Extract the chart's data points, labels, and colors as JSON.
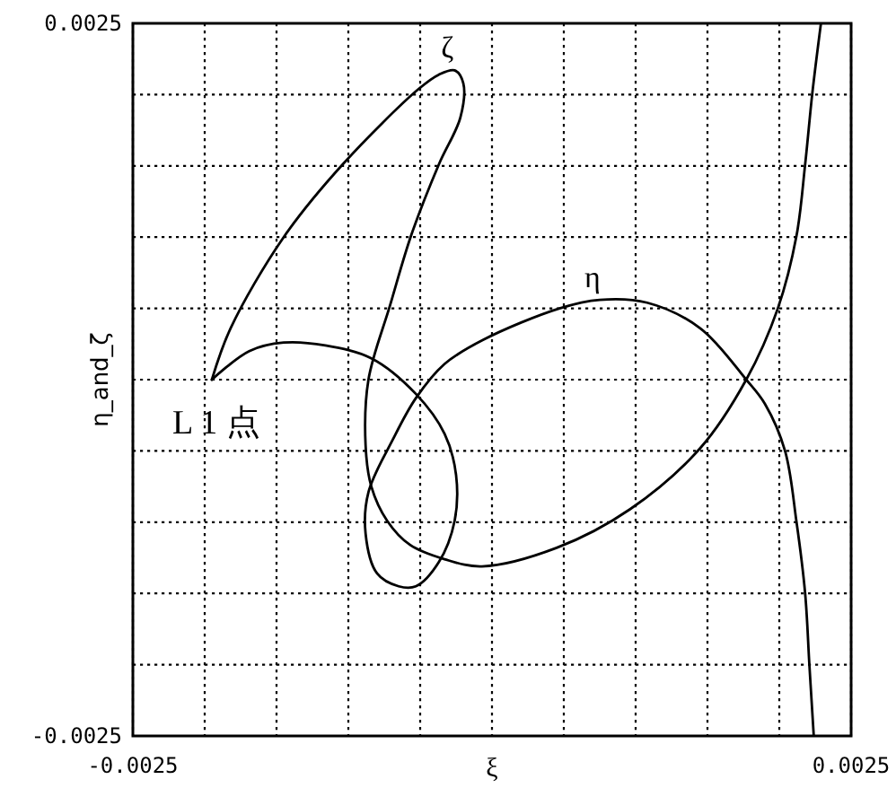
{
  "chart_data": {
    "type": "line",
    "xlabel": "ξ",
    "ylabel": "η_and_ζ",
    "xlim": [
      -0.0025,
      0.0025
    ],
    "ylim": [
      -0.0025,
      0.0025
    ],
    "xticks": [
      -0.0025,
      {
        "value": -0.002,
        "label": null
      },
      {
        "value": -0.0015,
        "label": null
      },
      {
        "value": -0.001,
        "label": null
      },
      {
        "value": -0.0005,
        "label": null
      },
      {
        "value": 0,
        "label": null
      },
      {
        "value": 0.0005,
        "label": null
      },
      {
        "value": 0.001,
        "label": null
      },
      {
        "value": 0.0015,
        "label": null
      },
      {
        "value": 0.002,
        "label": null
      },
      0.0025
    ],
    "yticks": [
      -0.0025,
      {
        "value": -0.002,
        "label": null
      },
      {
        "value": -0.0015,
        "label": null
      },
      {
        "value": -0.001,
        "label": null
      },
      {
        "value": -0.0005,
        "label": null
      },
      {
        "value": 0,
        "label": null
      },
      {
        "value": 0.0005,
        "label": null
      },
      {
        "value": 0.001,
        "label": null
      },
      {
        "value": 0.0015,
        "label": null
      },
      {
        "value": 0.002,
        "label": null
      },
      0.0025
    ],
    "grid": true,
    "series": [
      {
        "name": "η",
        "color": "#000000",
        "x": [
          -0.00195,
          -0.00169,
          -0.00145,
          -0.00116,
          -0.00084,
          -0.00053,
          -0.00033,
          -0.00025,
          -0.00026,
          -0.00037,
          -0.00053,
          -0.00065,
          -0.0008,
          -0.00088,
          -0.00086,
          -0.00069,
          -0.00053,
          -0.00033,
          -6e-05,
          0.00047,
          0.00075,
          0.00108,
          0.00145,
          0.00177,
          0.0019,
          0.00204,
          0.00212,
          0.00218,
          0.00221,
          0.00224
        ],
        "values": [
          0,
          0.0002,
          0.00026,
          0.00024,
          0.00015,
          -0.0001,
          -0.00038,
          -0.00067,
          -0.00099,
          -0.00128,
          -0.00145,
          -0.00145,
          -0.00136,
          -0.00108,
          -0.00079,
          -0.00042,
          -0.00013,
          0.00011,
          0.00028,
          0.0005,
          0.00056,
          0.00054,
          0.00036,
          0,
          -0.00017,
          -0.0005,
          -0.001,
          -0.0015,
          -0.00201,
          -0.0025
        ]
      },
      {
        "name": "ζ",
        "color": "#000000",
        "x": [
          -0.00195,
          -0.00182,
          -0.00145,
          -0.00104,
          -0.00051,
          -0.00037,
          -0.00026,
          -0.0002,
          -0.00022,
          -0.00037,
          -0.00056,
          -0.00071,
          -0.00086,
          -0.00088,
          -0.00084,
          -0.00073,
          -0.00057,
          -0.00033,
          -7e-05,
          0.00045,
          0.00096,
          0.00145,
          0.00177,
          0.00199,
          0.00212,
          0.00218,
          0.00223,
          0.00229
        ],
        "values": [
          0,
          0.00036,
          0.001,
          0.00151,
          0.00204,
          0.00214,
          0.00217,
          0.00208,
          0.00184,
          0.00151,
          0.00102,
          0.00052,
          0,
          -0.00046,
          -0.00075,
          -0.00099,
          -0.00116,
          -0.00126,
          -0.00131,
          -0.00118,
          -0.00091,
          -0.00048,
          0,
          0.0005,
          0.00101,
          0.00151,
          0.00201,
          0.0025
        ]
      }
    ],
    "annotations": [
      {
        "text": "L 1 点",
        "x": -0.00195,
        "y": 0
      }
    ]
  }
}
